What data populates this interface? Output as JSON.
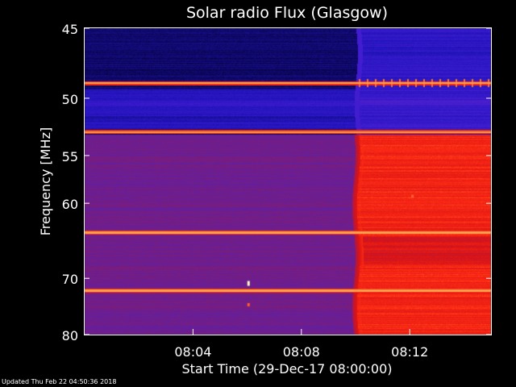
{
  "chart_data": {
    "type": "heatmap",
    "title": "Solar radio Flux (Glasgow)",
    "ylabel": "Frequency [MHz]",
    "xlabel": "Start Time (29-Dec-17 08:00:00)",
    "x_ticks": [
      "08:04",
      "08:08",
      "08:12"
    ],
    "x_tick_values_min": [
      4,
      8,
      12
    ],
    "xlim_min": [
      0,
      15
    ],
    "y_ticks": [
      "45",
      "50",
      "55",
      "60",
      "70",
      "80"
    ],
    "y_tick_values": [
      45,
      50,
      55,
      60,
      70,
      80
    ],
    "ylim": [
      45,
      80
    ],
    "y_scale": "reciprocal",
    "grid": false,
    "colormap": {
      "low": "#000030",
      "mid_low": "#2a18c8",
      "mid": "#6a2a9a",
      "mid_high": "#d01010",
      "high": "#ff3010",
      "peak": "#ffffc0"
    },
    "regions": [
      {
        "name": "quiet",
        "t_start_min": 0.0,
        "t_end_min": 10.0,
        "level": "low"
      },
      {
        "name": "enhanced",
        "t_start_min": 10.1,
        "t_end_min": 15.0,
        "level": "high"
      }
    ],
    "interference_lines_mhz": [
      48.8,
      52.8,
      63.5,
      71.9
    ],
    "bright_spots": [
      {
        "t_min": 6.05,
        "freq_mhz": 70.8
      },
      {
        "t_min": 6.05,
        "freq_mhz": 74.5
      },
      {
        "t_min": 12.1,
        "freq_mhz": 59.3
      }
    ]
  },
  "footer": {
    "updated": "Updated Thu Feb 22 04:50:36 2018"
  }
}
